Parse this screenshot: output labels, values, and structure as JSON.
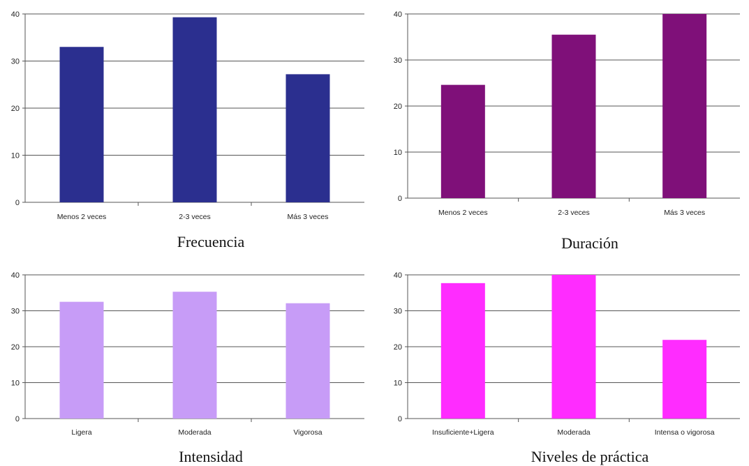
{
  "chart_data": [
    {
      "type": "bar",
      "title": "Frecuencia",
      "categories": [
        "Menos 2 veces",
        "2-3 veces",
        "Más 3 veces"
      ],
      "values": [
        33,
        39.3,
        27.2
      ],
      "ylim": [
        0,
        40
      ],
      "yticks": [
        "0",
        "10",
        "20",
        "30",
        "40"
      ],
      "grid": true,
      "color": "#2b2f8f"
    },
    {
      "type": "bar",
      "title": "Duración",
      "categories": [
        "Menos 2 veces",
        "2-3 veces",
        "Más 3 veces"
      ],
      "values": [
        24.6,
        35.5,
        40
      ],
      "ylim": [
        0,
        40
      ],
      "yticks": [
        "0",
        "10",
        "20",
        "30",
        "40"
      ],
      "grid": true,
      "color": "#7f1079"
    },
    {
      "type": "bar",
      "title": "Intensidad",
      "categories": [
        "Ligera",
        "Moderada",
        "Vigorosa"
      ],
      "values": [
        32.5,
        35.3,
        32.1
      ],
      "ylim": [
        0,
        40
      ],
      "yticks": [
        "0",
        "10",
        "20",
        "30",
        "40"
      ],
      "grid": true,
      "color": "#c79cf7"
    },
    {
      "type": "bar",
      "title": "Niveles de práctica",
      "categories": [
        "Insuficiente+Ligera",
        "Moderada",
        "Intensa o vigorosa"
      ],
      "values": [
        37.7,
        40,
        21.9
      ],
      "ylim": [
        0,
        40
      ],
      "yticks": [
        "0",
        "10",
        "20",
        "30",
        "40"
      ],
      "grid": true,
      "color": "#ff2cff"
    }
  ]
}
